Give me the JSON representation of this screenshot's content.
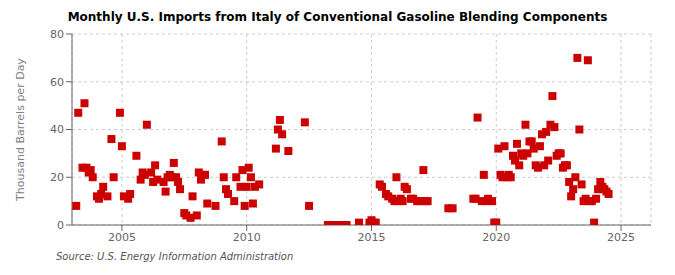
{
  "chart_data": {
    "type": "scatter",
    "title": "Monthly U.S. Imports from Italy of Conventional Gasoline Blending Components",
    "y_label": "Thousand Barrels per Day",
    "annotation": "Source: U.S. Energy Information Administration",
    "color": "#cc0000",
    "marker": "square",
    "grid": true,
    "xlim": [
      2003.0,
      2026.2
    ],
    "xticks": [
      2005,
      2010,
      2015,
      2020,
      2025
    ],
    "ylim": [
      0,
      80
    ],
    "yticks": [
      0,
      20,
      40,
      60,
      80
    ],
    "x": [
      2003.17,
      2003.25,
      2003.42,
      2003.5,
      2003.58,
      2003.67,
      2003.75,
      2003.83,
      2004.0,
      2004.08,
      2004.17,
      2004.25,
      2004.42,
      2004.58,
      2004.67,
      2004.92,
      2005.0,
      2005.08,
      2005.25,
      2005.33,
      2005.58,
      2005.75,
      2005.83,
      2005.92,
      2006.0,
      2006.17,
      2006.25,
      2006.33,
      2006.42,
      2006.67,
      2006.75,
      2006.83,
      2006.92,
      2007.0,
      2007.08,
      2007.17,
      2007.25,
      2007.33,
      2007.5,
      2007.58,
      2007.75,
      2007.83,
      2008.0,
      2008.08,
      2008.17,
      2008.25,
      2008.33,
      2008.42,
      2008.75,
      2009.0,
      2009.08,
      2009.17,
      2009.25,
      2009.5,
      2009.58,
      2009.75,
      2009.83,
      2009.92,
      2010.0,
      2010.08,
      2010.17,
      2010.25,
      2010.33,
      2010.5,
      2011.17,
      2011.25,
      2011.33,
      2011.42,
      2011.67,
      2012.33,
      2012.5,
      2013.25,
      2013.5,
      2013.75,
      2014.0,
      2014.5,
      2014.92,
      2015.0,
      2015.08,
      2015.17,
      2015.33,
      2015.42,
      2015.58,
      2015.67,
      2015.83,
      2015.92,
      2016.0,
      2016.08,
      2016.17,
      2016.25,
      2016.33,
      2016.42,
      2016.58,
      2016.67,
      2016.83,
      2016.92,
      2017.08,
      2017.17,
      2017.25,
      2018.08,
      2018.25,
      2019.08,
      2019.17,
      2019.25,
      2019.42,
      2019.5,
      2019.58,
      2019.67,
      2019.83,
      2019.92,
      2020.0,
      2020.08,
      2020.17,
      2020.25,
      2020.33,
      2020.42,
      2020.5,
      2020.58,
      2020.67,
      2020.75,
      2020.83,
      2020.92,
      2021.0,
      2021.08,
      2021.17,
      2021.25,
      2021.33,
      2021.42,
      2021.5,
      2021.58,
      2021.67,
      2021.75,
      2021.83,
      2021.92,
      2022.0,
      2022.08,
      2022.17,
      2022.25,
      2022.33,
      2022.42,
      2022.5,
      2022.58,
      2022.67,
      2022.75,
      2022.83,
      2022.92,
      2023.0,
      2023.08,
      2023.17,
      2023.25,
      2023.33,
      2023.42,
      2023.5,
      2023.58,
      2023.67,
      2023.75,
      2023.83,
      2023.92,
      2024.0,
      2024.08,
      2024.17,
      2024.25,
      2024.33,
      2024.42,
      2024.5
    ],
    "values": [
      8,
      47,
      24,
      51,
      24,
      22,
      23,
      20,
      12,
      11,
      13,
      16,
      12,
      36,
      20,
      47,
      33,
      12,
      11,
      13,
      29,
      19,
      22,
      21,
      42,
      22,
      18,
      25,
      19,
      18,
      14,
      20,
      21,
      20,
      26,
      20,
      18,
      15,
      5,
      4,
      3,
      12,
      4,
      22,
      19,
      21,
      21,
      9,
      8,
      35,
      20,
      15,
      13,
      10,
      20,
      16,
      23,
      8,
      16,
      24,
      20,
      9,
      16,
      17,
      32,
      40,
      44,
      38,
      31,
      43,
      8,
      0,
      0,
      0,
      0,
      1,
      1,
      2,
      1,
      1,
      17,
      16,
      13,
      12,
      11,
      10,
      20,
      10,
      11,
      10,
      16,
      15,
      11,
      11,
      10,
      10,
      23,
      10,
      10,
      7,
      7,
      11,
      11,
      45,
      10,
      21,
      10,
      11,
      10,
      1,
      1,
      32,
      21,
      20,
      33,
      20,
      21,
      20,
      29,
      27,
      34,
      25,
      30,
      29,
      42,
      30,
      35,
      35,
      32,
      25,
      24,
      33,
      38,
      25,
      39,
      27,
      42,
      54,
      41,
      29,
      30,
      30,
      24,
      25,
      25,
      18,
      12,
      15,
      20,
      70,
      40,
      17,
      10,
      11,
      69,
      10,
      10,
      1,
      11,
      15,
      18,
      16,
      15,
      14,
      13
    ]
  }
}
